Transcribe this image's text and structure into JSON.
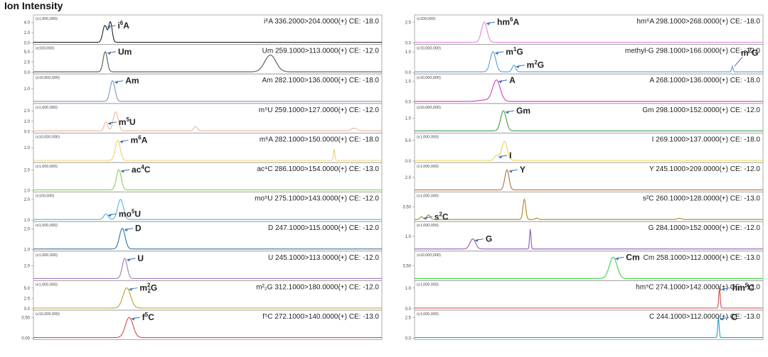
{
  "header": "Ion Intensity",
  "chart_data": [
    {
      "type": "line",
      "column": "left",
      "name": "i6A",
      "label_base": "i",
      "label_sup": "6",
      "label_rest": "A",
      "transition": "i⁶A 336.2000>204.0000(+) CE: -18.0",
      "scale": "(x1,000,000)",
      "yticks": [
        "4.0",
        "2.0",
        "0.0"
      ],
      "color": "#222222",
      "peaks": [
        [
          0.205,
          0.75,
          0.006
        ],
        [
          0.221,
          0.9,
          0.005
        ]
      ]
    },
    {
      "type": "line",
      "column": "left",
      "name": "Um",
      "label_base": "Um",
      "label_sup": "",
      "label_rest": "",
      "transition": "Um 259.1000>113.0000(+) CE: -12.0",
      "scale": "(x100,000)",
      "yticks": [
        "5.0",
        "2.5",
        "0.0"
      ],
      "color": "#555555",
      "peaks": [
        [
          0.206,
          0.9,
          0.006
        ],
        [
          0.68,
          0.75,
          0.016
        ]
      ]
    },
    {
      "type": "line",
      "column": "left",
      "name": "Am",
      "label_base": "Am",
      "label_sup": "",
      "label_rest": "",
      "transition": "Am 282.1000>136.0000(+) CE: -18.0",
      "scale": "(x10,000,000)",
      "yticks": [
        "1.0"
      ],
      "color": "#7d95bd",
      "peaks": [
        [
          0.227,
          0.92,
          0.007
        ]
      ]
    },
    {
      "type": "line",
      "column": "left",
      "name": "m5U",
      "label_base": "m",
      "label_sup": "5",
      "label_rest": "U",
      "transition": "m⁵U 259.1000>127.0000(+) CE: -12.0",
      "scale": "(x1,000,000)",
      "yticks": [
        "2.0",
        "1.0",
        "0.0"
      ],
      "color": "#f2b592",
      "peaks": [
        [
          0.208,
          0.4,
          0.005
        ],
        [
          0.236,
          0.85,
          0.007
        ],
        [
          0.465,
          0.2,
          0.005
        ],
        [
          0.92,
          0.12,
          0.008
        ]
      ]
    },
    {
      "type": "line",
      "column": "left",
      "name": "m6A",
      "label_base": "m",
      "label_sup": "6",
      "label_rest": "A",
      "transition": "m⁶A 282.1000>150.0000(+) CE: -18.0",
      "scale": "(x10,000,000)",
      "yticks": [
        "1.0"
      ],
      "color": "#f0d070",
      "peaks": [
        [
          0.242,
          0.9,
          0.007
        ],
        [
          0.863,
          0.5,
          0.002
        ]
      ]
    },
    {
      "type": "line",
      "column": "left",
      "name": "ac4C",
      "label_base": "ac",
      "label_sup": "4",
      "label_rest": "C",
      "transition": "ac⁴C 286.1000>154.0000(+) CE: -13.0",
      "scale": "(x1,000,000)",
      "yticks": [
        "2.0",
        "1.0"
      ],
      "color": "#8fc95e",
      "peaks": [
        [
          0.245,
          0.9,
          0.007
        ]
      ]
    },
    {
      "type": "line",
      "column": "left",
      "name": "mo5U",
      "label_base": "mo",
      "label_sup": "5",
      "label_rest": "U",
      "transition": "mo⁵U 275.1000>143.0000(+) CE: -12.0",
      "scale": "(x100,000)",
      "yticks": [
        "2.0",
        "1.0"
      ],
      "color": "#58b4d8",
      "peaks": [
        [
          0.208,
          0.25,
          0.006
        ],
        [
          0.25,
          0.9,
          0.008
        ]
      ]
    },
    {
      "type": "line",
      "column": "left",
      "name": "D",
      "label_base": "D",
      "label_sup": "",
      "label_rest": "",
      "transition": "D 247.1000>115.0000(+) CE: -12.0",
      "scale": "(x1,000,000)",
      "yticks": [
        "2.0",
        "1.0"
      ],
      "color": "#2f6ea6",
      "peaks": [
        [
          0.255,
          0.92,
          0.008
        ]
      ]
    },
    {
      "type": "line",
      "column": "left",
      "name": "U",
      "label_base": "U",
      "label_sup": "",
      "label_rest": "",
      "transition": "U 245.1000>113.0000(+) CE: -12.0",
      "scale": "(x1,000,000)",
      "yticks": [
        "2.0"
      ],
      "color": "#9d79c0",
      "peaks": [
        [
          0.262,
          0.9,
          0.007
        ]
      ]
    },
    {
      "type": "line",
      "column": "left",
      "name": "m22G",
      "label_base": "m",
      "label_sup": "2",
      "label_rest": "G",
      "label_sub": "2",
      "transition": "m²₂G 312.1000>180.0000(+) CE: -12.0",
      "scale": "(x1,000,000)",
      "yticks": [
        "5.0",
        "2.5",
        "0.0"
      ],
      "color": "#b8a030",
      "peaks": [
        [
          0.268,
          0.9,
          0.011
        ]
      ]
    },
    {
      "type": "line",
      "column": "left",
      "name": "f5C",
      "label_base": "f",
      "label_sup": "5",
      "label_rest": "C",
      "transition": "f⁵C 272.1000>140.0000(+) CE: -13.0",
      "scale": "(x10,000,000)",
      "yticks": [
        "0.50",
        "0.00"
      ],
      "color": "#d24a4a",
      "peaks": [
        [
          0.275,
          0.9,
          0.011
        ]
      ]
    },
    {
      "type": "line",
      "column": "right",
      "name": "hm6A",
      "label_base": "hm",
      "label_sup": "6",
      "label_rest": "A",
      "transition": "hm⁶A 298.1000>268.0000(+) CE: -18.0",
      "scale": "(x100,000)",
      "yticks": [
        "2.5",
        "0.0"
      ],
      "color": "#e088d8",
      "peaks": [
        [
          0.2,
          0.9,
          0.008
        ]
      ]
    },
    {
      "type": "line",
      "column": "right",
      "name": "m1G m2G m7G",
      "label_base": "m",
      "label_sup": "1",
      "label_rest": "G",
      "label2_base": "m",
      "label2_sup": "2",
      "label2_rest": "G",
      "label3_base": "m",
      "label3_sup": "7",
      "label3_rest": "G",
      "transition": "methyl-G 298.1000>166.0000(+) CE: -12.0",
      "scale": "(x10,000,000)",
      "yticks": [
        "1.0",
        "0.0"
      ],
      "color": "#5a9ad6",
      "peaks": [
        [
          0.225,
          0.9,
          0.008
        ],
        [
          0.285,
          0.3,
          0.005
        ],
        [
          0.912,
          0.25,
          0.002
        ]
      ]
    },
    {
      "type": "line",
      "column": "right",
      "name": "A",
      "label_base": "A",
      "label_sup": "",
      "label_rest": "",
      "transition": "A 268.1000>136.0000(+) CE: -18.0",
      "scale": "(x10,000,000)",
      "yticks": [
        "1.0",
        "0.0"
      ],
      "color": "#d23ac8",
      "peaks": [
        [
          0.235,
          0.95,
          0.011
        ],
        [
          0.2,
          0.06,
          0.015
        ]
      ]
    },
    {
      "type": "line",
      "column": "right",
      "name": "Gm",
      "label_base": "Gm",
      "label_sup": "",
      "label_rest": "",
      "transition": "Gm 298.1000>152.0000(+) CE: -12.0",
      "scale": "(x10,000,000)",
      "yticks": [
        "1.0"
      ],
      "color": "#3ba04a",
      "peaks": [
        [
          0.255,
          0.9,
          0.008
        ]
      ]
    },
    {
      "type": "line",
      "column": "right",
      "name": "I",
      "label_base": "I",
      "label_sup": "",
      "label_rest": "",
      "transition": "I 269.1000>137.0000(+) CE: -18.0",
      "scale": "(x1,000,000)",
      "yticks": [
        "5.0",
        "0.0"
      ],
      "color": "#f0cf55",
      "peaks": [
        [
          0.235,
          0.22,
          0.006
        ],
        [
          0.258,
          0.85,
          0.008
        ]
      ]
    },
    {
      "type": "line",
      "column": "right",
      "name": "Y",
      "label_base": "Y",
      "label_sup": "",
      "label_rest": "",
      "transition": "Y 245.1000>209.0000(+) CE: -12.0",
      "scale": "(x1,000,000)",
      "yticks": [
        "2.0"
      ],
      "color": "#b5703a",
      "peaks": [
        [
          0.265,
          0.9,
          0.006
        ]
      ]
    },
    {
      "type": "line",
      "column": "right",
      "name": "s2C",
      "label_base": "s",
      "label_sup": "2",
      "label_rest": "C",
      "transition": "s²C 260.1000>128.0000(+) CE: -13.0",
      "scale": "(x1,000,000)",
      "yticks": [
        "3.50"
      ],
      "color": "#a8861c",
      "peaks": [
        [
          0.02,
          0.12,
          0.004
        ],
        [
          0.04,
          0.2,
          0.005
        ],
        [
          0.315,
          0.9,
          0.004
        ],
        [
          0.35,
          0.06,
          0.004
        ],
        [
          0.76,
          0.05,
          0.006
        ]
      ]
    },
    {
      "type": "line",
      "column": "right",
      "name": "G",
      "label_base": "G",
      "label_sup": "",
      "label_rest": "",
      "transition": "G 284.1000>152.0000(+) CE: -12.0",
      "scale": "(x1,000,000)",
      "yticks": [
        "1.0"
      ],
      "color": "#8a55b8",
      "peaks": [
        [
          0.167,
          0.45,
          0.008
        ],
        [
          0.332,
          0.9,
          0.002
        ]
      ]
    },
    {
      "type": "line",
      "column": "right",
      "name": "Cm",
      "label_base": "Cm",
      "label_sup": "",
      "label_rest": "",
      "transition": "Cm 258.1000>112.0000(+) CE: -13.0",
      "scale": "(x10,000,000)",
      "yticks": [
        "3.50"
      ],
      "color": "#3dd24a",
      "peaks": [
        [
          0.57,
          0.95,
          0.011
        ]
      ]
    },
    {
      "type": "line",
      "column": "right",
      "name": "hm5C",
      "label_base": "hm",
      "label_sup": "5",
      "label_rest": "C",
      "transition": "hm⁵C 274.1000>142.0000(+) CE: -13.0",
      "scale": "(x1,000,000)",
      "yticks": [
        "1.0",
        "0.0"
      ],
      "color": "#d24a4a",
      "peaks": [
        [
          0.875,
          0.9,
          0.002
        ]
      ]
    },
    {
      "type": "line",
      "column": "right",
      "name": "C",
      "label_base": "C",
      "label_sup": "",
      "label_rest": "",
      "transition": "C 244.1000>112.0000(+) CE: -13.0",
      "scale": "(x1,000,000)",
      "yticks": [
        "2.5",
        "0.0"
      ],
      "color": "#1ba0d4",
      "peaks": [
        [
          0.872,
          0.9,
          0.002
        ]
      ]
    }
  ]
}
